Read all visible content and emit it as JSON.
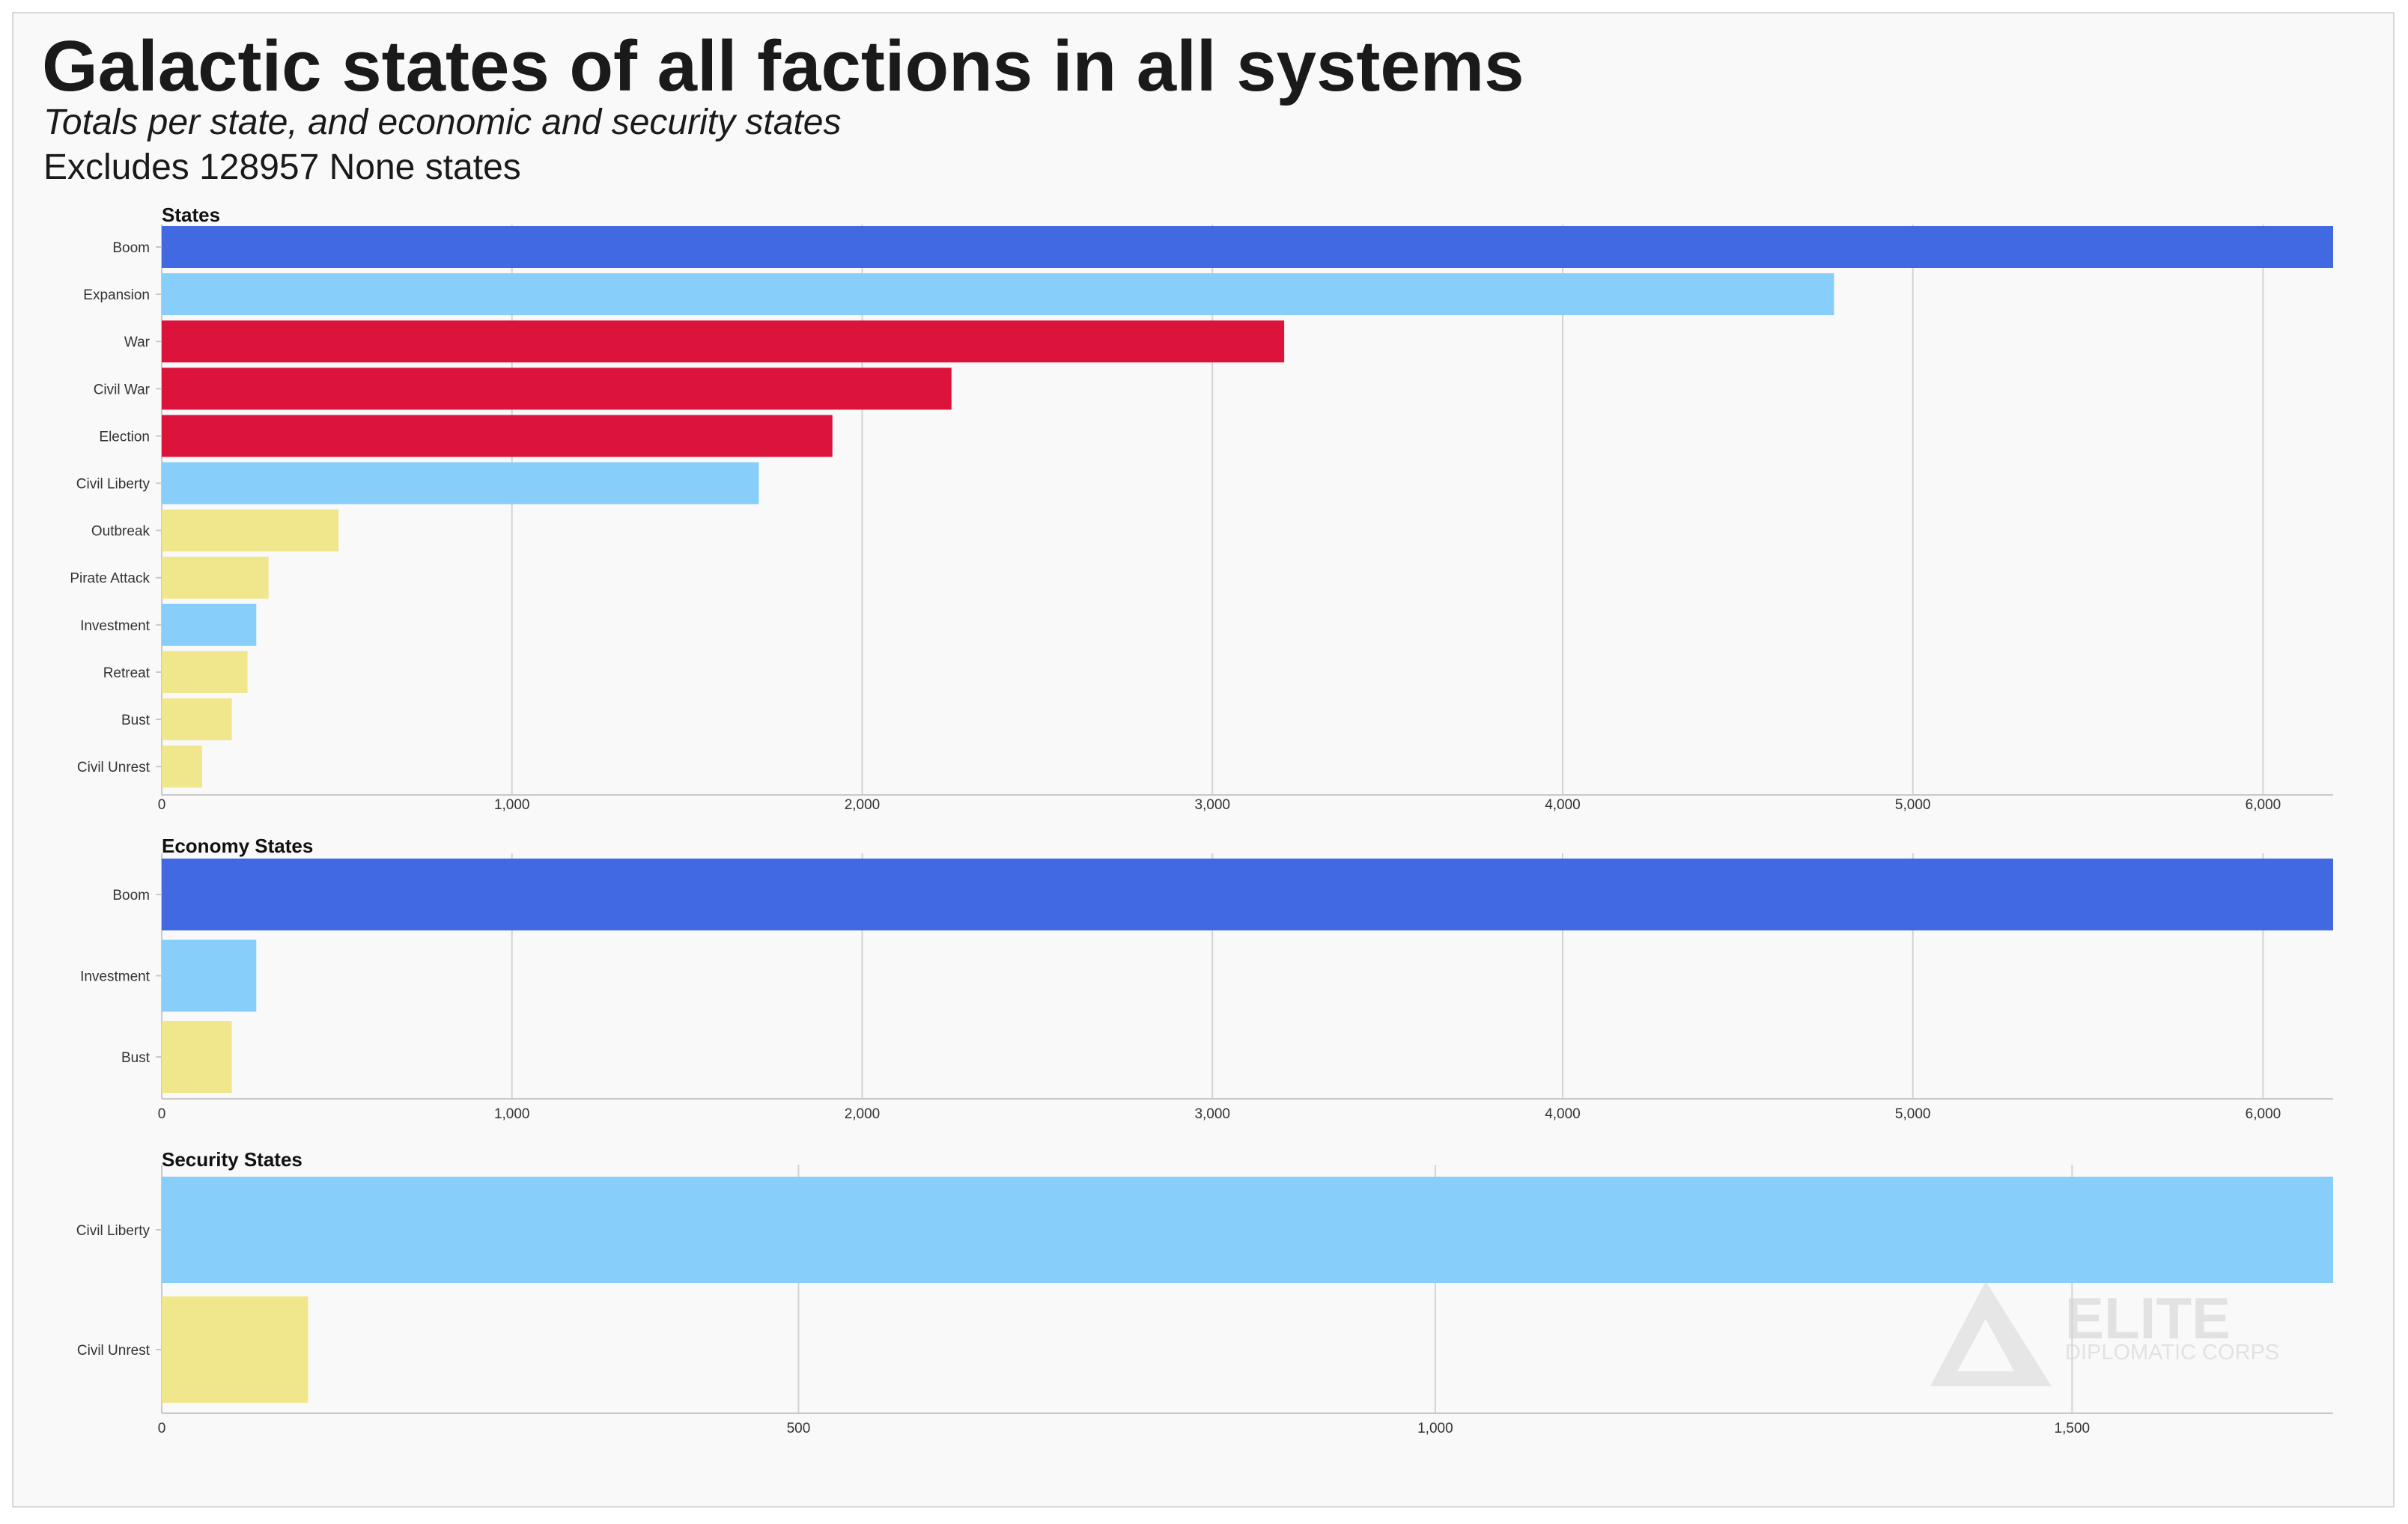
{
  "title": "Galactic states of all factions in all systems",
  "subtitle": "Totals per state, and economic and security states",
  "note": "Excludes 128957 None states",
  "watermark": {
    "line1": "ELITE",
    "line2": "DIPLOMATIC CORPS"
  },
  "colors": {
    "blue": "#4169e1",
    "lightblue": "#87cefa",
    "red": "#dc143c",
    "khaki": "#f0e68c"
  },
  "chart_data": [
    {
      "type": "bar",
      "orientation": "horizontal",
      "title": "States",
      "categories": [
        "Boom",
        "Expansion",
        "War",
        "Civil War",
        "Election",
        "Civil Liberty",
        "Outbreak",
        "Pirate Attack",
        "Investment",
        "Retreat",
        "Bust",
        "Civil Unrest"
      ],
      "values": [
        6200,
        4775,
        3205,
        2255,
        1915,
        1705,
        505,
        305,
        270,
        245,
        200,
        115
      ],
      "colors": [
        "#4169e1",
        "#87cefa",
        "#dc143c",
        "#dc143c",
        "#dc143c",
        "#87cefa",
        "#f0e68c",
        "#f0e68c",
        "#87cefa",
        "#f0e68c",
        "#f0e68c",
        "#f0e68c"
      ],
      "xlim": [
        0,
        6200
      ],
      "ticks": [
        0,
        1000,
        2000,
        3000,
        4000,
        5000,
        6000
      ],
      "tick_labels": [
        "0",
        "1,000",
        "2,000",
        "3,000",
        "4,000",
        "5,000",
        "6,000"
      ],
      "grid": true
    },
    {
      "type": "bar",
      "orientation": "horizontal",
      "title": "Economy States",
      "categories": [
        "Boom",
        "Investment",
        "Bust"
      ],
      "values": [
        6200,
        270,
        200
      ],
      "colors": [
        "#4169e1",
        "#87cefa",
        "#f0e68c"
      ],
      "xlim": [
        0,
        6200
      ],
      "ticks": [
        0,
        1000,
        2000,
        3000,
        4000,
        5000,
        6000
      ],
      "tick_labels": [
        "0",
        "1,000",
        "2,000",
        "3,000",
        "4,000",
        "5,000",
        "6,000"
      ],
      "grid": true
    },
    {
      "type": "bar",
      "orientation": "horizontal",
      "title": "Security States",
      "categories": [
        "Civil Liberty",
        "Civil Unrest"
      ],
      "values": [
        1705,
        115
      ],
      "colors": [
        "#87cefa",
        "#f0e68c"
      ],
      "xlim": [
        0,
        1705
      ],
      "ticks": [
        0,
        500,
        1000,
        1500
      ],
      "tick_labels": [
        "0",
        "500",
        "1,000",
        "1,500"
      ],
      "grid": true
    }
  ]
}
